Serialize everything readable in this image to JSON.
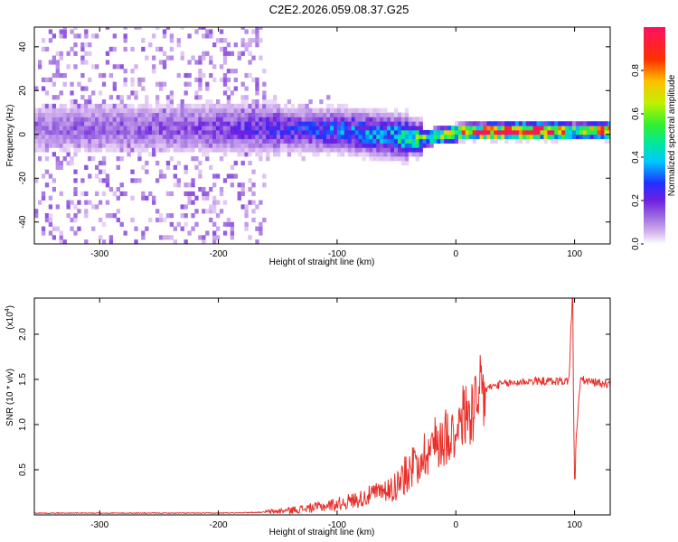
{
  "title": "C2E2.2026.059.08.37.G25",
  "colors": {
    "snr_line": "#e8302a",
    "frame": "#000000",
    "spectrogram_background": "#ffffff",
    "colormap": [
      "#ffffff",
      "#d8b8f0",
      "#a070e0",
      "#7020e0",
      "#2030ff",
      "#00c8ff",
      "#00e8a0",
      "#30f030",
      "#c0f000",
      "#ffc000",
      "#ff3000",
      "#ff1060"
    ]
  },
  "chart_data": [
    {
      "type": "heatmap",
      "xlabel": "Height of straight line (km)",
      "ylabel": "Frequency (Hz)",
      "xlim": [
        -355,
        130
      ],
      "ylim": [
        -50,
        49
      ],
      "x_ticks": [
        -300,
        -200,
        -100,
        0,
        100
      ],
      "y_ticks": [
        -40,
        -20,
        0,
        20,
        40
      ],
      "colorbar": {
        "label": "Normalized spectral amplitude",
        "range": [
          0,
          1
        ],
        "ticks": [
          0.0,
          0.2,
          0.4,
          0.6,
          0.8
        ]
      },
      "description_points": {
        "band_center_hz": [
          [
            -350,
            3
          ],
          [
            -200,
            3
          ],
          [
            -100,
            2
          ],
          [
            -50,
            -1
          ],
          [
            -30,
            -2
          ],
          [
            0,
            1
          ],
          [
            50,
            1.5
          ],
          [
            100,
            1.5
          ],
          [
            130,
            1.5
          ]
        ],
        "band_peak_amplitude": [
          [
            -350,
            0.12
          ],
          [
            -220,
            0.15
          ],
          [
            -150,
            0.22
          ],
          [
            -100,
            0.3
          ],
          [
            -60,
            0.35
          ],
          [
            -30,
            0.5
          ],
          [
            0,
            0.7
          ],
          [
            30,
            0.95
          ],
          [
            80,
            0.95
          ],
          [
            100,
            0.5
          ],
          [
            130,
            0.95
          ]
        ]
      }
    },
    {
      "type": "line",
      "xlabel": "Height of straight line (km)",
      "ylabel": "SNR (10 * v/v)",
      "y_multiplier": "(x10",
      "y_multiplier_exponent": "4",
      "xlim": [
        -355,
        130
      ],
      "ylim": [
        0,
        2.4
      ],
      "x_ticks": [
        -300,
        -200,
        -100,
        0,
        100
      ],
      "y_ticks": [
        0.5,
        1.0,
        1.5,
        2.0
      ],
      "y_tick_labels": [
        "0.5",
        "1.0",
        "1.5",
        "2.0"
      ],
      "series": [
        {
          "values": [
            [
              -355,
              0.02
            ],
            [
              -300,
              0.02
            ],
            [
              -250,
              0.02
            ],
            [
              -200,
              0.02
            ],
            [
              -160,
              0.03
            ],
            [
              -140,
              0.05
            ],
            [
              -120,
              0.08
            ],
            [
              -100,
              0.12
            ],
            [
              -80,
              0.18
            ],
            [
              -60,
              0.28
            ],
            [
              -50,
              0.35
            ],
            [
              -40,
              0.5
            ],
            [
              -30,
              0.65
            ],
            [
              -20,
              0.8
            ],
            [
              -10,
              0.9
            ],
            [
              0,
              1.0
            ],
            [
              5,
              1.1
            ],
            [
              10,
              1.15
            ],
            [
              15,
              1.2
            ],
            [
              20,
              1.35
            ],
            [
              30,
              1.42
            ],
            [
              40,
              1.45
            ],
            [
              60,
              1.48
            ],
            [
              80,
              1.48
            ],
            [
              95,
              1.48
            ],
            [
              98,
              2.3
            ],
            [
              100,
              0.4
            ],
            [
              102,
              1.0
            ],
            [
              105,
              1.5
            ],
            [
              110,
              1.48
            ],
            [
              120,
              1.46
            ],
            [
              130,
              1.45
            ]
          ]
        }
      ]
    }
  ],
  "colorbar_tick_labels": [
    "0.0",
    "0.2",
    "0.4",
    "0.6",
    "0.8"
  ],
  "panel1_x_tick_labels": [
    "-300",
    "-200",
    "-100",
    "0",
    "100"
  ],
  "panel1_y_tick_labels": [
    "-40",
    "-20",
    "0",
    "20",
    "40"
  ],
  "panel2_x_tick_labels": [
    "-300",
    "-200",
    "-100",
    "0",
    "100"
  ]
}
